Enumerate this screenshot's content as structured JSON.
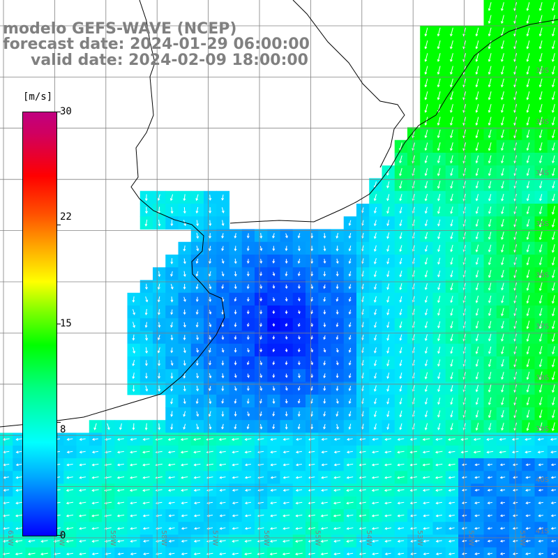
{
  "title": {
    "line1": "modelo GEFS-WAVE (NCEP)",
    "line2": "forecast date: 2024-01-29 06:00:00",
    "line3": "valid date: 2024-02-09 18:00:00"
  },
  "colorbar": {
    "unit": "[m/s]",
    "ticks": [
      "30",
      "22",
      "15",
      "8",
      "0"
    ],
    "tick_values": [
      30,
      22,
      15,
      8,
      0
    ],
    "range": [
      0,
      30
    ],
    "colors": [
      "#0000ff",
      "#00aaff",
      "#00ffff",
      "#00ff80",
      "#00ff00",
      "#ffff00",
      "#ff8000",
      "#ff0000",
      "#c00080"
    ]
  },
  "axes": {
    "lat_labels": [
      "32S",
      "33S",
      "34S",
      "35S",
      "36S",
      "37S",
      "38S",
      "39S",
      "40S",
      "41S"
    ],
    "lon_labels": [
      "61W",
      "60W",
      "59W",
      "58W",
      "57W",
      "56W",
      "55W",
      "54W",
      "53W",
      "52W",
      "51W",
      "50W"
    ]
  },
  "map": {
    "field": "wind speed",
    "grid": true,
    "land_color": "#ffffff",
    "coast_color": "#000000"
  }
}
